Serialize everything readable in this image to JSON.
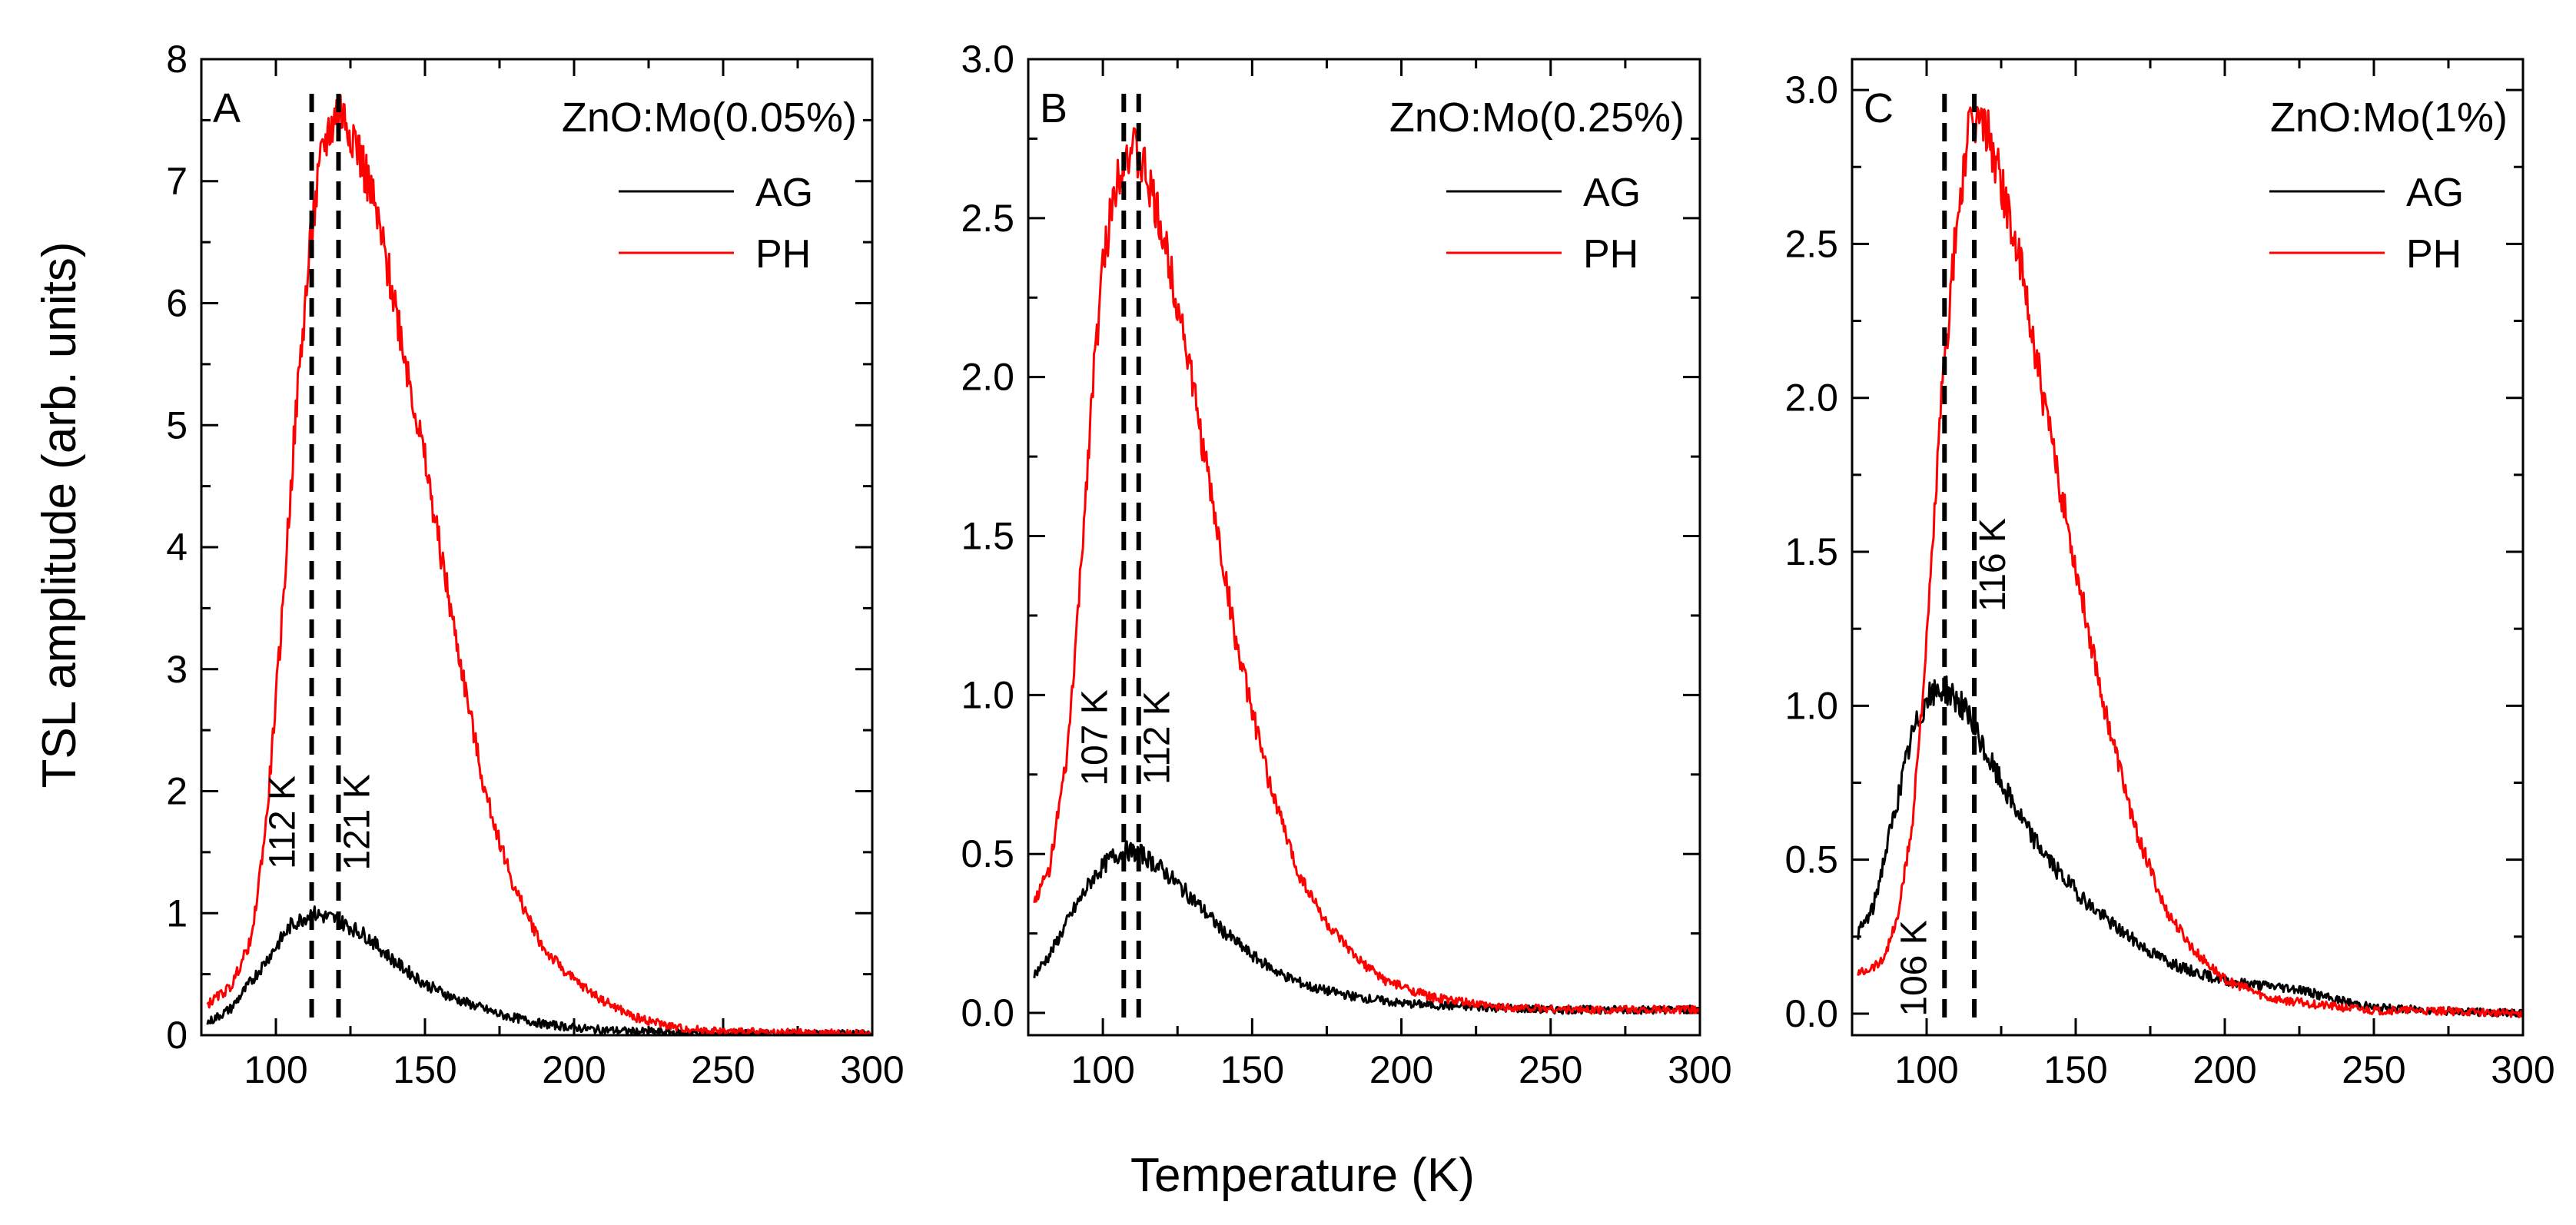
{
  "chart_data": {
    "type": "line",
    "xlabel": "Temperature (K)",
    "ylabel": "TSL amplitude (arb. units)",
    "xlim": [
      75,
      300
    ],
    "xticks": [
      100,
      150,
      200,
      250,
      300
    ],
    "series_colors": {
      "AG": "#000000",
      "PH": "#ff0000"
    },
    "panels": [
      {
        "letter": "A",
        "title": "ZnO:Mo(0.05%)",
        "ylim": [
          0,
          8
        ],
        "yticks": [
          0,
          1,
          2,
          3,
          4,
          5,
          6,
          7,
          8
        ],
        "ytick_labels": [
          "0",
          "1",
          "2",
          "3",
          "4",
          "5",
          "6",
          "7",
          "8"
        ],
        "peaks": [
          {
            "x": 112,
            "label": "112 K"
          },
          {
            "x": 121,
            "label": "121 K"
          }
        ],
        "series": [
          {
            "name": "AG",
            "x": [
              77,
              85,
              95,
              105,
              112,
              120,
              130,
              140,
              150,
              160,
              175,
              190,
              205,
              220,
              240,
              260,
              280,
              300
            ],
            "y": [
              0.1,
              0.22,
              0.55,
              0.9,
              1.0,
              0.95,
              0.82,
              0.6,
              0.42,
              0.3,
              0.17,
              0.09,
              0.05,
              0.03,
              0.02,
              0.01,
              0.01,
              0.01
            ]
          },
          {
            "name": "PH",
            "x": [
              77,
              85,
              92,
              97,
              102,
              107,
              112,
              116,
              121,
              126,
              132,
              140,
              150,
              160,
              170,
              180,
              190,
              200,
              210,
              220,
              235,
              250,
              270,
              300
            ],
            "y": [
              0.25,
              0.4,
              0.8,
              1.8,
              3.4,
              5.2,
              6.6,
              7.3,
              7.6,
              7.4,
              6.9,
              6.0,
              4.7,
              3.3,
              2.0,
              1.2,
              0.7,
              0.45,
              0.28,
              0.15,
              0.06,
              0.03,
              0.02,
              0.01
            ]
          }
        ]
      },
      {
        "letter": "B",
        "title": "ZnO:Mo(0.25%)",
        "ylim": [
          -0.07,
          3.0
        ],
        "yticks": [
          0,
          0.5,
          1.0,
          1.5,
          2.0,
          2.5,
          3.0
        ],
        "ytick_labels": [
          "0.0",
          "0.5",
          "1.0",
          "1.5",
          "2.0",
          "2.5",
          "3.0"
        ],
        "peaks": [
          {
            "x": 107,
            "label": "107 K"
          },
          {
            "x": 112,
            "label": "112 K"
          }
        ],
        "series": [
          {
            "name": "AG",
            "x": [
              77,
              82,
              90,
              97,
              103,
              108,
              113,
              120,
              130,
              140,
              150,
              160,
              170,
              185,
              200,
              220,
              250,
              300
            ],
            "y": [
              0.12,
              0.18,
              0.32,
              0.43,
              0.49,
              0.51,
              0.5,
              0.45,
              0.36,
              0.26,
              0.18,
              0.12,
              0.08,
              0.05,
              0.03,
              0.02,
              0.01,
              0.01
            ]
          },
          {
            "name": "PH",
            "x": [
              77,
              82,
              88,
              92,
              96,
              100,
              104,
              107,
              110,
              114,
              120,
              127,
              135,
              145,
              155,
              165,
              175,
              185,
              195,
              210,
              230,
              260,
              300
            ],
            "y": [
              0.35,
              0.45,
              0.8,
              1.3,
              1.9,
              2.35,
              2.6,
              2.7,
              2.72,
              2.65,
              2.45,
              2.15,
              1.7,
              1.15,
              0.75,
              0.45,
              0.28,
              0.17,
              0.1,
              0.05,
              0.02,
              0.01,
              0.01
            ]
          }
        ]
      },
      {
        "letter": "C",
        "title": "ZnO:Mo(1%)",
        "ylim": [
          -0.07,
          3.1
        ],
        "yticks": [
          0,
          0.5,
          1.0,
          1.5,
          2.0,
          2.5,
          3.0
        ],
        "ytick_labels": [
          "0.0",
          "0.5",
          "1.0",
          "1.5",
          "2.0",
          "2.5",
          "3.0"
        ],
        "peaks": [
          {
            "x": 106,
            "label": "106 K"
          },
          {
            "x": 116,
            "label": "116 K"
          }
        ],
        "series": [
          {
            "name": "AG",
            "x": [
              77,
              82,
              88,
              95,
              100,
              106,
              112,
              118,
              125,
              135,
              145,
              155,
              165,
              175,
              185,
              195,
              205,
              215,
              225,
              235,
              250,
              270,
              300
            ],
            "y": [
              0.26,
              0.34,
              0.6,
              0.9,
              1.02,
              1.06,
              1.0,
              0.88,
              0.75,
              0.58,
              0.45,
              0.35,
              0.27,
              0.2,
              0.15,
              0.12,
              0.1,
              0.09,
              0.08,
              0.05,
              0.02,
              0.01,
              0.0
            ]
          },
          {
            "name": "PH",
            "x": [
              77,
              85,
              90,
              95,
              100,
              105,
              110,
              114,
              117,
              120,
              125,
              132,
              140,
              150,
              160,
              170,
              180,
              190,
              200,
              215,
              230,
              250,
              270,
              300
            ],
            "y": [
              0.13,
              0.17,
              0.3,
              0.6,
              1.2,
              2.0,
              2.55,
              2.85,
              2.9,
              2.88,
              2.7,
              2.4,
              1.95,
              1.45,
              0.98,
              0.6,
              0.34,
              0.2,
              0.11,
              0.05,
              0.03,
              0.01,
              0.01,
              0.0
            ]
          }
        ]
      }
    ]
  }
}
